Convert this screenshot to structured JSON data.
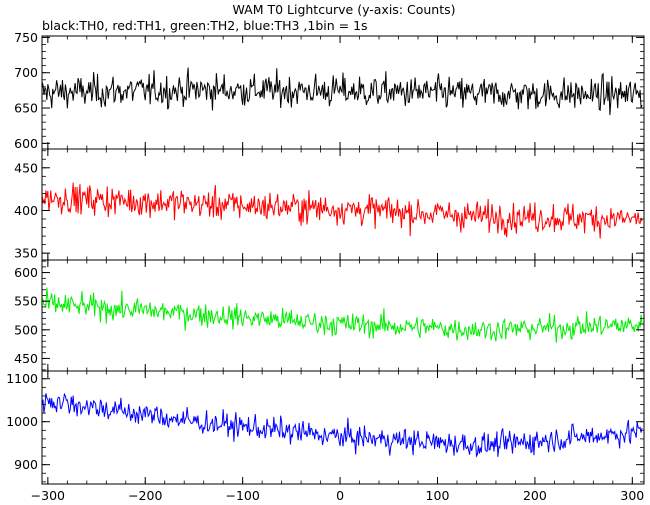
{
  "title": "WAM T0 Lightcurve (y-axis: Counts)",
  "subtitle": "black:TH0, red:TH1, green:TH2, blue:TH3 ,1bin = 1s",
  "chart_data": {
    "type": "line",
    "title": "WAM T0 Lightcurve (y-axis: Counts)",
    "xlabel": "",
    "ylabel": "",
    "x_range": [
      -306,
      312
    ],
    "x_ticks": [
      -300,
      -200,
      -100,
      0,
      100,
      200,
      300
    ],
    "x_tick_labels": [
      "−300",
      "−200",
      "−100",
      "0",
      "100",
      "200",
      "300"
    ],
    "grid": false,
    "bin_seconds": 1,
    "panels": [
      {
        "name": "TH0",
        "color": "#000000",
        "ylim": [
          592,
          752
        ],
        "y_ticks": [
          600,
          650,
          700,
          750
        ],
        "y_tick_labels": [
          "600",
          "650",
          "700",
          "750"
        ],
        "trend": [
          {
            "x": -300,
            "y": 672
          },
          {
            "x": -150,
            "y": 676
          },
          {
            "x": 0,
            "y": 674
          },
          {
            "x": 150,
            "y": 670
          },
          {
            "x": 300,
            "y": 669
          }
        ],
        "scatter": 26
      },
      {
        "name": "TH1",
        "color": "#ff0000",
        "ylim": [
          342,
          472
        ],
        "y_ticks": [
          350,
          400,
          450
        ],
        "y_tick_labels": [
          "350",
          "400",
          "450"
        ],
        "trend": [
          {
            "x": -300,
            "y": 415
          },
          {
            "x": -150,
            "y": 408
          },
          {
            "x": 0,
            "y": 402
          },
          {
            "x": 150,
            "y": 393
          },
          {
            "x": 300,
            "y": 390
          }
        ],
        "scatter": 20
      },
      {
        "name": "TH2",
        "color": "#00ee00",
        "ylim": [
          428,
          622
        ],
        "y_ticks": [
          450,
          500,
          550,
          600
        ],
        "y_tick_labels": [
          "450",
          "500",
          "550",
          "600"
        ],
        "trend": [
          {
            "x": -300,
            "y": 545
          },
          {
            "x": -150,
            "y": 528
          },
          {
            "x": 0,
            "y": 510
          },
          {
            "x": 150,
            "y": 500
          },
          {
            "x": 300,
            "y": 508
          }
        ],
        "scatter": 23
      },
      {
        "name": "TH3",
        "color": "#0000ff",
        "ylim": [
          855,
          1118
        ],
        "y_ticks": [
          900,
          1000,
          1100
        ],
        "y_tick_labels": [
          "900",
          "1000",
          "1100"
        ],
        "trend": [
          {
            "x": -300,
            "y": 1050
          },
          {
            "x": -150,
            "y": 1000
          },
          {
            "x": 0,
            "y": 965
          },
          {
            "x": 150,
            "y": 945
          },
          {
            "x": 300,
            "y": 975
          }
        ],
        "scatter": 32
      }
    ]
  }
}
